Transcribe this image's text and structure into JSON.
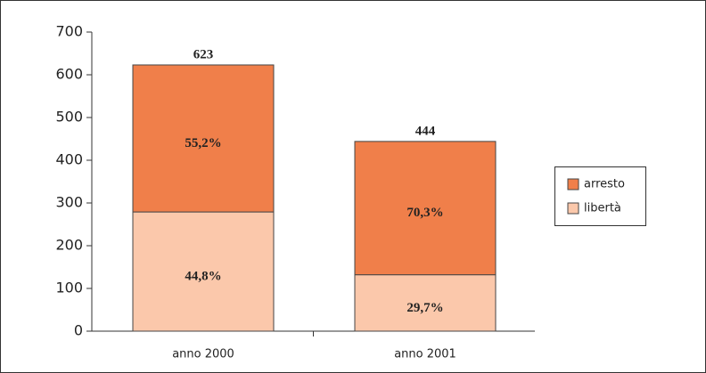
{
  "chart_data": {
    "type": "stacked_bar",
    "categories": [
      "anno 2000",
      "anno 2001"
    ],
    "series": [
      {
        "name": "libertà",
        "color": "#fbc8ab",
        "values": [
          279,
          132
        ],
        "percentages": [
          44.8,
          29.7
        ],
        "percentage_labels": [
          "44,8%",
          "29,7%"
        ]
      },
      {
        "name": "arresto",
        "color": "#f07f4a",
        "values": [
          344,
          312
        ],
        "percentages": [
          55.2,
          70.3
        ],
        "percentage_labels": [
          "55,2%",
          "70,3%"
        ]
      }
    ],
    "totals": [
      623,
      444
    ],
    "ylim": [
      0,
      700
    ],
    "yticks": [
      0,
      100,
      200,
      300,
      400,
      500,
      600,
      700
    ],
    "legend": "right"
  }
}
